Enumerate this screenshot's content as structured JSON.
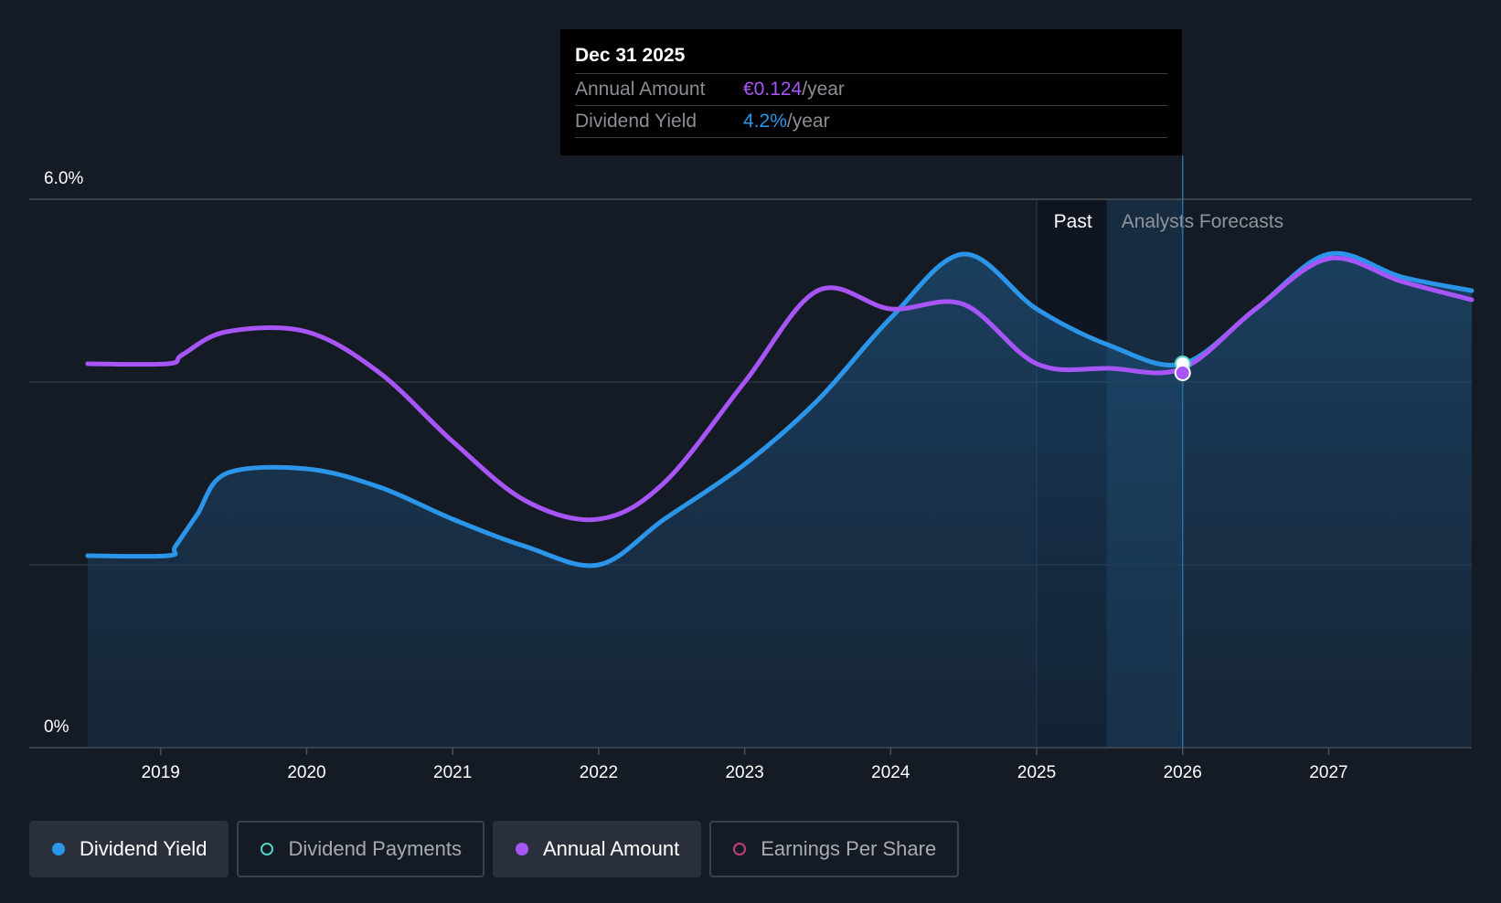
{
  "chart_data": {
    "type": "line",
    "y_ticks": [
      "6.0%",
      "0%"
    ],
    "ylim": [
      0,
      6.0
    ],
    "xlim": [
      2018.1,
      2027.98
    ],
    "x_ticks": [
      2019,
      2020,
      2021,
      2022,
      2023,
      2024,
      2025,
      2026,
      2027
    ],
    "grid": true,
    "past_label": "Past",
    "forecast_label": "Analysts Forecasts",
    "series": [
      {
        "name": "Dividend Yield",
        "color": "#2b95e9",
        "area": true,
        "points": [
          [
            2018.5,
            2.1
          ],
          [
            2019.05,
            2.1
          ],
          [
            2019.1,
            2.2
          ],
          [
            2019.25,
            2.55
          ],
          [
            2019.45,
            3.0
          ],
          [
            2020.0,
            3.05
          ],
          [
            2020.5,
            2.85
          ],
          [
            2021.0,
            2.5
          ],
          [
            2021.5,
            2.2
          ],
          [
            2022.0,
            2.0
          ],
          [
            2022.45,
            2.5
          ],
          [
            2023.0,
            3.1
          ],
          [
            2023.5,
            3.8
          ],
          [
            2024.0,
            4.7
          ],
          [
            2024.5,
            5.4
          ],
          [
            2025.0,
            4.8
          ],
          [
            2025.5,
            4.4
          ],
          [
            2026.0,
            4.2
          ],
          [
            2026.5,
            4.8
          ],
          [
            2027.0,
            5.4
          ],
          [
            2027.5,
            5.15
          ],
          [
            2027.98,
            5.0
          ]
        ]
      },
      {
        "name": "Annual Amount",
        "color": "#a855f7",
        "area": false,
        "points": [
          [
            2018.5,
            4.2
          ],
          [
            2019.05,
            4.2
          ],
          [
            2019.15,
            4.3
          ],
          [
            2019.45,
            4.55
          ],
          [
            2020.0,
            4.55
          ],
          [
            2020.5,
            4.1
          ],
          [
            2021.0,
            3.35
          ],
          [
            2021.5,
            2.7
          ],
          [
            2022.0,
            2.5
          ],
          [
            2022.45,
            2.9
          ],
          [
            2023.0,
            4.0
          ],
          [
            2023.5,
            5.0
          ],
          [
            2024.0,
            4.8
          ],
          [
            2024.5,
            4.85
          ],
          [
            2025.0,
            4.2
          ],
          [
            2025.5,
            4.15
          ],
          [
            2026.0,
            4.15
          ],
          [
            2026.5,
            4.8
          ],
          [
            2027.0,
            5.35
          ],
          [
            2027.5,
            5.1
          ],
          [
            2027.98,
            4.9
          ]
        ]
      }
    ],
    "highlight_x": 2026.0,
    "past_region_start": 2025.0,
    "forecast_region_start": 2025.48,
    "series_legend": [
      {
        "name": "Dividend Yield",
        "color": "#2b95e9",
        "active": true,
        "filled": true
      },
      {
        "name": "Dividend Payments",
        "color": "#4fd1c5",
        "active": false,
        "filled": false
      },
      {
        "name": "Annual Amount",
        "color": "#a855f7",
        "active": true,
        "filled": true
      },
      {
        "name": "Earnings Per Share",
        "color": "#c0407a",
        "active": false,
        "filled": false
      }
    ]
  },
  "tooltip": {
    "date": "Dec 31 2025",
    "rows": [
      {
        "label": "Annual Amount",
        "value": "€0.124",
        "unit": "/year",
        "color": "#a855f7"
      },
      {
        "label": "Dividend Yield",
        "value": "4.2%",
        "unit": "/year",
        "color": "#2b95e9"
      }
    ]
  }
}
